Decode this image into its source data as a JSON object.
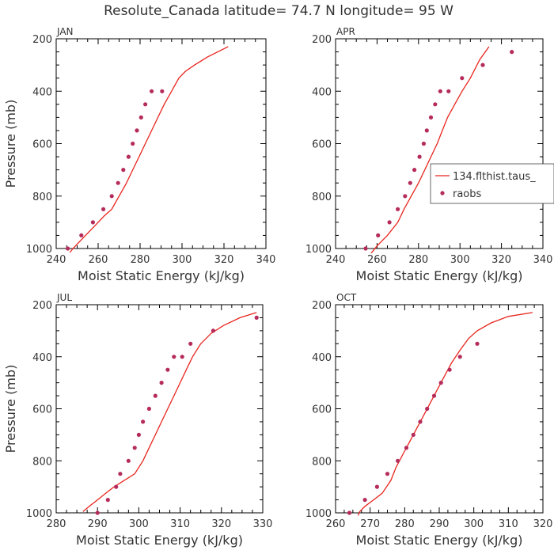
{
  "title": "Resolute_Canada  latitude= 74.7 N longitude= 95 W",
  "chart_data": [
    {
      "type": "line",
      "panel_label": "JAN",
      "xlabel": "Moist Static Energy (kJ/kg)",
      "ylabel": "Pressure (mb)",
      "xlim": [
        240,
        340
      ],
      "ylim": [
        1000,
        200
      ],
      "x_ticks": [
        240,
        260,
        280,
        300,
        320,
        340
      ],
      "y_ticks": [
        200,
        400,
        600,
        800,
        1000
      ],
      "y_tick_labels": true,
      "series": [
        {
          "name": "134.flthist.taus_",
          "color": "#e8251e",
          "style": "line",
          "x": [
            246.5,
            248,
            251,
            254,
            257,
            260,
            263,
            266.5,
            270,
            273.5,
            276.5,
            279.5,
            282.5,
            285.5,
            288.5,
            291.5,
            295,
            298.5,
            301.5,
            306,
            312,
            322
          ],
          "y": [
            1015,
            1000,
            975,
            950,
            925,
            900,
            875,
            850,
            800,
            750,
            700,
            650,
            600,
            550,
            500,
            450,
            400,
            350,
            325,
            300,
            270,
            230
          ]
        },
        {
          "name": "raobs",
          "color": "#b52c5a",
          "style": "points",
          "x": [
            245.5,
            252,
            257.5,
            262.5,
            266.5,
            269.5,
            272,
            274.5,
            276.5,
            278.5,
            280.5,
            282.5,
            285.5,
            290.5
          ],
          "y": [
            1000,
            950,
            900,
            850,
            800,
            750,
            700,
            650,
            600,
            550,
            500,
            450,
            400,
            400
          ]
        }
      ]
    },
    {
      "type": "line",
      "panel_label": "APR",
      "xlabel": "Moist Static Energy (kJ/kg)",
      "ylabel": "",
      "xlim": [
        240,
        340
      ],
      "ylim": [
        1000,
        200
      ],
      "x_ticks": [
        240,
        260,
        280,
        300,
        320,
        340
      ],
      "y_ticks": [
        200,
        400,
        600,
        800,
        1000
      ],
      "y_tick_labels": true,
      "legend": {
        "placement": "right",
        "entries": [
          "134.flthist.taus_",
          "raobs"
        ]
      },
      "series": [
        {
          "name": "134.flthist.taus_",
          "color": "#e8251e",
          "style": "line",
          "x": [
            257,
            260,
            265,
            270,
            273,
            276.5,
            280,
            283,
            286,
            289,
            291.5,
            294,
            297.5,
            301,
            305,
            309.5,
            314
          ],
          "y": [
            1020,
            990,
            950,
            900,
            850,
            800,
            750,
            700,
            650,
            600,
            550,
            500,
            450,
            400,
            350,
            280,
            230
          ]
        },
        {
          "name": "raobs",
          "color": "#b52c5a",
          "style": "points",
          "x": [
            254.5,
            260.5,
            266,
            270,
            273.5,
            276,
            278,
            280.5,
            282.5,
            284,
            286,
            288,
            290.5,
            294.5,
            301,
            311,
            325
          ],
          "y": [
            1000,
            950,
            900,
            850,
            800,
            750,
            700,
            650,
            600,
            550,
            500,
            450,
            400,
            400,
            350,
            300,
            250
          ]
        }
      ]
    },
    {
      "type": "line",
      "panel_label": "JUL",
      "xlabel": "Moist Static Energy (kJ/kg)",
      "ylabel": "Pressure (mb)",
      "xlim": [
        280,
        330
      ],
      "ylim": [
        1000,
        200
      ],
      "x_ticks": [
        280,
        290,
        300,
        310,
        320,
        330
      ],
      "y_ticks": [
        200,
        400,
        600,
        800,
        1000
      ],
      "y_tick_labels": true,
      "series": [
        {
          "name": "134.flthist.taus_",
          "color": "#e8251e",
          "style": "line",
          "x": [
            286.5,
            288,
            290,
            292,
            294,
            296.5,
            299,
            301,
            302.5,
            304,
            305.5,
            307,
            308.5,
            310,
            311.5,
            313,
            315,
            317.5,
            320.5,
            324.5,
            328.5
          ],
          "y": [
            995,
            975,
            950,
            925,
            900,
            875,
            850,
            800,
            750,
            700,
            650,
            600,
            550,
            500,
            450,
            400,
            350,
            310,
            280,
            250,
            230
          ]
        },
        {
          "name": "raobs",
          "color": "#b52c5a",
          "style": "points",
          "x": [
            290,
            292.5,
            294.5,
            295.5,
            297.5,
            299,
            300,
            301,
            302.5,
            304,
            305.5,
            307,
            308.5,
            310.5,
            312.5,
            318,
            328.5
          ],
          "y": [
            1000,
            950,
            900,
            850,
            800,
            750,
            700,
            650,
            600,
            550,
            500,
            450,
            400,
            400,
            350,
            300,
            250
          ]
        }
      ]
    },
    {
      "type": "line",
      "panel_label": "OCT",
      "xlabel": "Moist Static Energy (kJ/kg)",
      "ylabel": "",
      "xlim": [
        260,
        320
      ],
      "ylim": [
        1000,
        200
      ],
      "x_ticks": [
        260,
        270,
        280,
        290,
        300,
        310,
        320
      ],
      "y_ticks": [
        200,
        400,
        600,
        800,
        1000
      ],
      "y_tick_labels": true,
      "series": [
        {
          "name": "134.flthist.taus_",
          "color": "#e8251e",
          "style": "line",
          "x": [
            266.5,
            267,
            268.5,
            271,
            273.5,
            276,
            277.5,
            279.5,
            281.5,
            283.5,
            285.5,
            287.5,
            289.5,
            291.5,
            293.5,
            296,
            298.5,
            301,
            305,
            310,
            317
          ],
          "y": [
            1010,
            995,
            975,
            950,
            925,
            875,
            825,
            775,
            725,
            675,
            625,
            575,
            525,
            475,
            425,
            375,
            330,
            300,
            270,
            245,
            230
          ]
        },
        {
          "name": "raobs",
          "color": "#b52c5a",
          "style": "points",
          "x": [
            264,
            268.5,
            272,
            275,
            278,
            280.5,
            282.5,
            284.5,
            286.5,
            288.5,
            290.5,
            293,
            296,
            301
          ],
          "y": [
            1000,
            950,
            900,
            850,
            800,
            750,
            700,
            650,
            600,
            550,
            500,
            450,
            400,
            350
          ]
        }
      ]
    }
  ]
}
